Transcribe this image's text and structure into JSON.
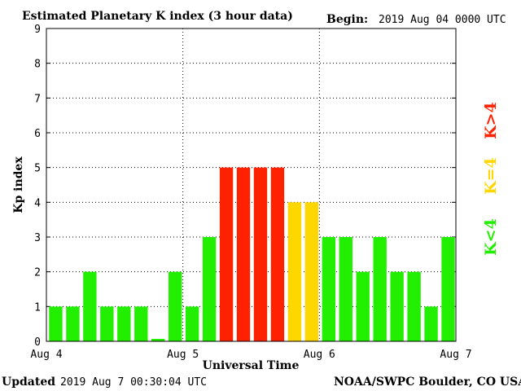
{
  "header": {
    "title": "Estimated Planetary K index (3 hour data)",
    "begin_label": "Begin:",
    "begin_value": "2019 Aug 04 0000 UTC"
  },
  "footer": {
    "updated_label": "Updated",
    "updated_value": "2019 Aug  7 00:30:04 UTC",
    "source": "NOAA/SWPC Boulder, CO USA"
  },
  "legend": [
    {
      "label": "K>4",
      "color": "#ff2200"
    },
    {
      "label": "K=4",
      "color": "#ffd700"
    },
    {
      "label": "K<4",
      "color": "#22ee00"
    }
  ],
  "chart_data": {
    "type": "bar",
    "title": "Estimated Planetary K index (3 hour data)",
    "xlabel": "Universal Time",
    "ylabel": "Kp index",
    "ylim": [
      0,
      9
    ],
    "yticks": [
      0,
      1,
      2,
      3,
      4,
      5,
      6,
      7,
      8,
      9
    ],
    "xticks": [
      "Aug 4",
      "Aug 5",
      "Aug 6",
      "Aug 7"
    ],
    "bar_interval_hours": 3,
    "values": [
      1,
      1,
      2,
      1,
      1,
      1,
      0.07,
      2,
      1,
      3,
      5,
      5,
      5,
      5,
      4,
      4,
      3,
      3,
      2,
      3,
      2,
      2,
      1,
      3
    ],
    "colors": {
      "below_4": "#22ee00",
      "equal_4": "#ffd700",
      "above_4": "#ff2200"
    },
    "grid": true
  }
}
